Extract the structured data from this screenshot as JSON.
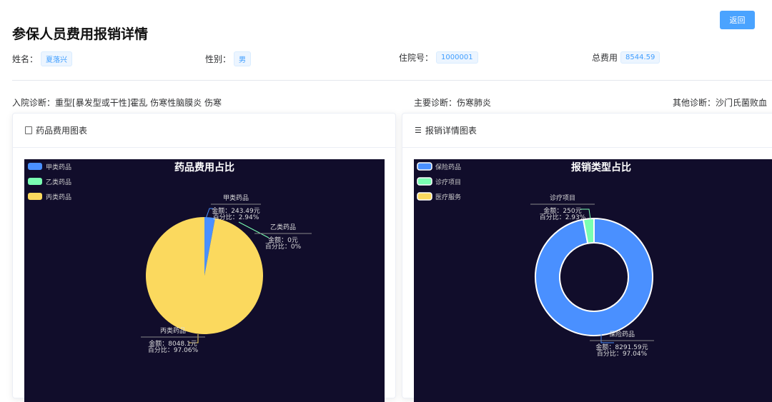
{
  "page": {
    "title": "参保人员费用报销详情",
    "back_label": "返回"
  },
  "info": {
    "name_label": "姓名：",
    "name": "夏落兴",
    "gender_label": "性别：",
    "gender": "男",
    "admission_label": "住院号：",
    "admission_no": "1000001",
    "total_label": "总费用",
    "total": "8544.59"
  },
  "diagnosis": {
    "admit_label": "入院诊断：",
    "admit": "重型[暴发型或干性]霍乱 伤寒性脑膜炎 伤寒",
    "main_label": "主要诊断：",
    "main": "伤寒肺炎",
    "other_label": "其他诊断：",
    "other": "沙门氏菌败血"
  },
  "cards": [
    {
      "title": "药品费用图表",
      "icon": "document-chart-icon"
    },
    {
      "title": "报销详情图表",
      "icon": "sliders-icon"
    }
  ],
  "colors": {
    "primary": "#409eff",
    "chart_bg": "#110d2b",
    "blue": "#4a90ff",
    "green": "#7affb2",
    "yellow": "#fbd95e"
  },
  "chart_data": [
    {
      "type": "pie",
      "title": "药品费用占比",
      "legend_position": "top-left",
      "categories": [
        "甲类药品",
        "乙类药品",
        "丙类药品"
      ],
      "values": [
        243.49,
        0,
        8048.1
      ],
      "labels": [
        {
          "name": "甲类药品",
          "amount": "金额：243.49元",
          "percent": "百分比：2.94%"
        },
        {
          "name": "乙类药品",
          "amount": "金额：0元",
          "percent": "百分比：0%"
        },
        {
          "name": "丙类药品",
          "amount": "金额：8048.1元",
          "percent": "百分比：97.06%"
        }
      ]
    },
    {
      "type": "pie",
      "variant": "donut",
      "title": "报销类型占比",
      "legend_position": "top-left",
      "categories": [
        "保险药品",
        "诊疗项目",
        "医疗服务"
      ],
      "values": [
        8291.59,
        250,
        null
      ],
      "labels": [
        {
          "name": "保险药品",
          "amount": "金额：8291.59元",
          "percent": "百分比：97.04%"
        },
        {
          "name": "诊疗项目",
          "amount": "金额：250元",
          "percent": "百分比：2.93%"
        }
      ]
    }
  ]
}
